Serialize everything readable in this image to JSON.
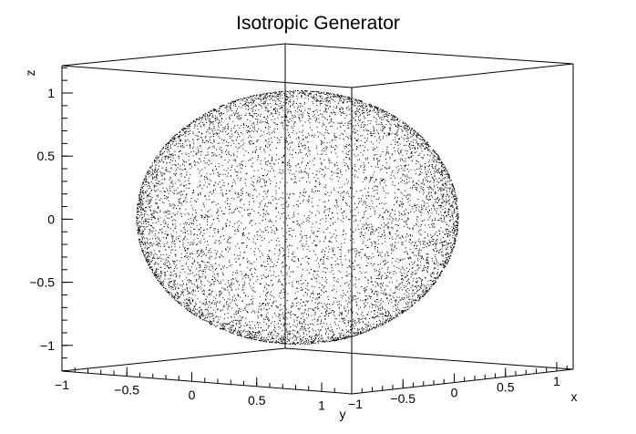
{
  "chart_data": {
    "type": "scatter",
    "title": "Isotropic Generator",
    "xlabel": "x",
    "ylabel": "y",
    "zlabel": "z",
    "xlim": [
      -1.2,
      1.2
    ],
    "ylim": [
      -1.2,
      1.2
    ],
    "zlim": [
      -1.2,
      1.2
    ],
    "x_ticks": [
      "−1",
      "−0.5",
      "0",
      "0.5",
      "1"
    ],
    "y_ticks": [
      "−1",
      "−0.5",
      "0",
      "0.5",
      "1"
    ],
    "z_ticks": [
      "1",
      "0.5",
      "0",
      "−0.5",
      "−1"
    ],
    "series": [
      {
        "shape": "unit sphere surface",
        "radius": 1,
        "marker_color": "#000000"
      }
    ],
    "grid": false,
    "legend": false
  }
}
